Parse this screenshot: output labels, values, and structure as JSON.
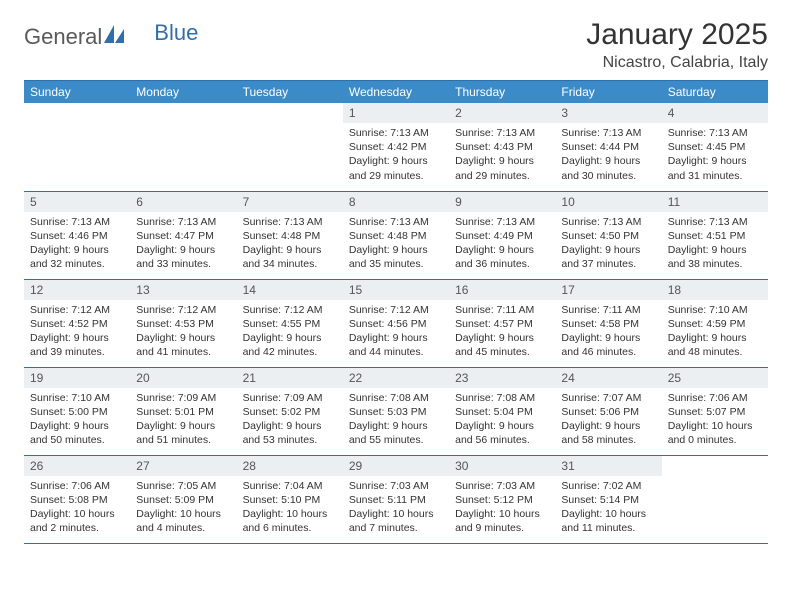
{
  "brand": {
    "part1": "General",
    "part2": "Blue"
  },
  "title": "January 2025",
  "location": "Nicastro, Calabria, Italy",
  "colors": {
    "header_bg": "#3b8bc9",
    "rule": "#2f6fab",
    "daynum_bg": "#eceff2"
  },
  "weekdays": [
    "Sunday",
    "Monday",
    "Tuesday",
    "Wednesday",
    "Thursday",
    "Friday",
    "Saturday"
  ],
  "weeks": [
    [
      null,
      null,
      null,
      {
        "n": "1",
        "sr": "Sunrise: 7:13 AM",
        "ss": "Sunset: 4:42 PM",
        "d1": "Daylight: 9 hours",
        "d2": "and 29 minutes."
      },
      {
        "n": "2",
        "sr": "Sunrise: 7:13 AM",
        "ss": "Sunset: 4:43 PM",
        "d1": "Daylight: 9 hours",
        "d2": "and 29 minutes."
      },
      {
        "n": "3",
        "sr": "Sunrise: 7:13 AM",
        "ss": "Sunset: 4:44 PM",
        "d1": "Daylight: 9 hours",
        "d2": "and 30 minutes."
      },
      {
        "n": "4",
        "sr": "Sunrise: 7:13 AM",
        "ss": "Sunset: 4:45 PM",
        "d1": "Daylight: 9 hours",
        "d2": "and 31 minutes."
      }
    ],
    [
      {
        "n": "5",
        "sr": "Sunrise: 7:13 AM",
        "ss": "Sunset: 4:46 PM",
        "d1": "Daylight: 9 hours",
        "d2": "and 32 minutes."
      },
      {
        "n": "6",
        "sr": "Sunrise: 7:13 AM",
        "ss": "Sunset: 4:47 PM",
        "d1": "Daylight: 9 hours",
        "d2": "and 33 minutes."
      },
      {
        "n": "7",
        "sr": "Sunrise: 7:13 AM",
        "ss": "Sunset: 4:48 PM",
        "d1": "Daylight: 9 hours",
        "d2": "and 34 minutes."
      },
      {
        "n": "8",
        "sr": "Sunrise: 7:13 AM",
        "ss": "Sunset: 4:48 PM",
        "d1": "Daylight: 9 hours",
        "d2": "and 35 minutes."
      },
      {
        "n": "9",
        "sr": "Sunrise: 7:13 AM",
        "ss": "Sunset: 4:49 PM",
        "d1": "Daylight: 9 hours",
        "d2": "and 36 minutes."
      },
      {
        "n": "10",
        "sr": "Sunrise: 7:13 AM",
        "ss": "Sunset: 4:50 PM",
        "d1": "Daylight: 9 hours",
        "d2": "and 37 minutes."
      },
      {
        "n": "11",
        "sr": "Sunrise: 7:13 AM",
        "ss": "Sunset: 4:51 PM",
        "d1": "Daylight: 9 hours",
        "d2": "and 38 minutes."
      }
    ],
    [
      {
        "n": "12",
        "sr": "Sunrise: 7:12 AM",
        "ss": "Sunset: 4:52 PM",
        "d1": "Daylight: 9 hours",
        "d2": "and 39 minutes."
      },
      {
        "n": "13",
        "sr": "Sunrise: 7:12 AM",
        "ss": "Sunset: 4:53 PM",
        "d1": "Daylight: 9 hours",
        "d2": "and 41 minutes."
      },
      {
        "n": "14",
        "sr": "Sunrise: 7:12 AM",
        "ss": "Sunset: 4:55 PM",
        "d1": "Daylight: 9 hours",
        "d2": "and 42 minutes."
      },
      {
        "n": "15",
        "sr": "Sunrise: 7:12 AM",
        "ss": "Sunset: 4:56 PM",
        "d1": "Daylight: 9 hours",
        "d2": "and 44 minutes."
      },
      {
        "n": "16",
        "sr": "Sunrise: 7:11 AM",
        "ss": "Sunset: 4:57 PM",
        "d1": "Daylight: 9 hours",
        "d2": "and 45 minutes."
      },
      {
        "n": "17",
        "sr": "Sunrise: 7:11 AM",
        "ss": "Sunset: 4:58 PM",
        "d1": "Daylight: 9 hours",
        "d2": "and 46 minutes."
      },
      {
        "n": "18",
        "sr": "Sunrise: 7:10 AM",
        "ss": "Sunset: 4:59 PM",
        "d1": "Daylight: 9 hours",
        "d2": "and 48 minutes."
      }
    ],
    [
      {
        "n": "19",
        "sr": "Sunrise: 7:10 AM",
        "ss": "Sunset: 5:00 PM",
        "d1": "Daylight: 9 hours",
        "d2": "and 50 minutes."
      },
      {
        "n": "20",
        "sr": "Sunrise: 7:09 AM",
        "ss": "Sunset: 5:01 PM",
        "d1": "Daylight: 9 hours",
        "d2": "and 51 minutes."
      },
      {
        "n": "21",
        "sr": "Sunrise: 7:09 AM",
        "ss": "Sunset: 5:02 PM",
        "d1": "Daylight: 9 hours",
        "d2": "and 53 minutes."
      },
      {
        "n": "22",
        "sr": "Sunrise: 7:08 AM",
        "ss": "Sunset: 5:03 PM",
        "d1": "Daylight: 9 hours",
        "d2": "and 55 minutes."
      },
      {
        "n": "23",
        "sr": "Sunrise: 7:08 AM",
        "ss": "Sunset: 5:04 PM",
        "d1": "Daylight: 9 hours",
        "d2": "and 56 minutes."
      },
      {
        "n": "24",
        "sr": "Sunrise: 7:07 AM",
        "ss": "Sunset: 5:06 PM",
        "d1": "Daylight: 9 hours",
        "d2": "and 58 minutes."
      },
      {
        "n": "25",
        "sr": "Sunrise: 7:06 AM",
        "ss": "Sunset: 5:07 PM",
        "d1": "Daylight: 10 hours",
        "d2": "and 0 minutes."
      }
    ],
    [
      {
        "n": "26",
        "sr": "Sunrise: 7:06 AM",
        "ss": "Sunset: 5:08 PM",
        "d1": "Daylight: 10 hours",
        "d2": "and 2 minutes."
      },
      {
        "n": "27",
        "sr": "Sunrise: 7:05 AM",
        "ss": "Sunset: 5:09 PM",
        "d1": "Daylight: 10 hours",
        "d2": "and 4 minutes."
      },
      {
        "n": "28",
        "sr": "Sunrise: 7:04 AM",
        "ss": "Sunset: 5:10 PM",
        "d1": "Daylight: 10 hours",
        "d2": "and 6 minutes."
      },
      {
        "n": "29",
        "sr": "Sunrise: 7:03 AM",
        "ss": "Sunset: 5:11 PM",
        "d1": "Daylight: 10 hours",
        "d2": "and 7 minutes."
      },
      {
        "n": "30",
        "sr": "Sunrise: 7:03 AM",
        "ss": "Sunset: 5:12 PM",
        "d1": "Daylight: 10 hours",
        "d2": "and 9 minutes."
      },
      {
        "n": "31",
        "sr": "Sunrise: 7:02 AM",
        "ss": "Sunset: 5:14 PM",
        "d1": "Daylight: 10 hours",
        "d2": "and 11 minutes."
      },
      null
    ]
  ]
}
